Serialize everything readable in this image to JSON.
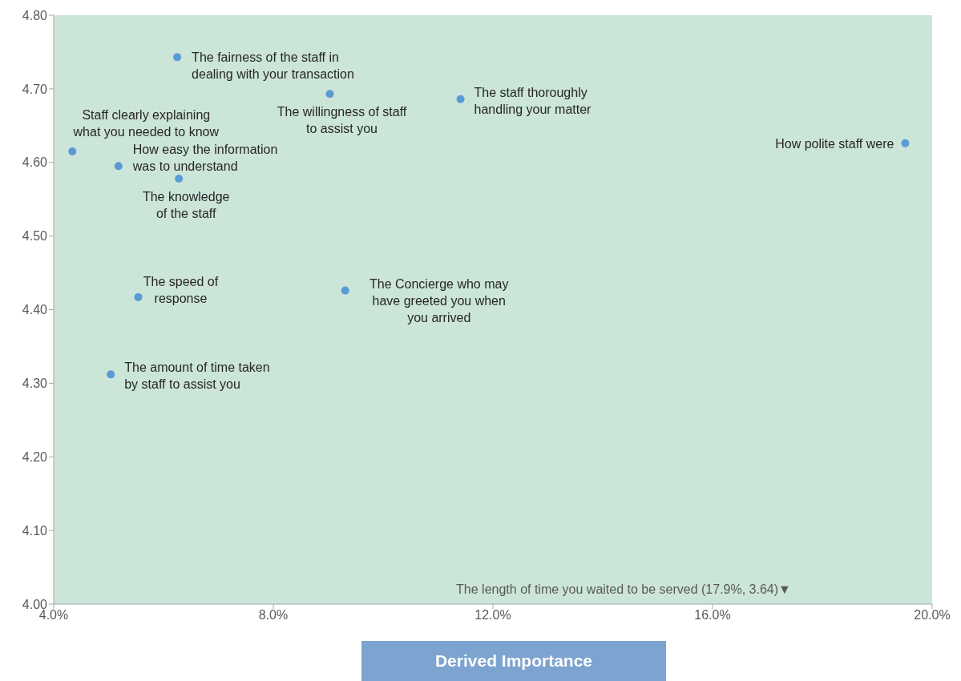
{
  "chart_data": {
    "type": "scatter",
    "xlabel": "Derived Importance",
    "x": [
      6.25,
      9.03,
      11.41,
      19.51,
      4.34,
      5.18,
      6.28,
      5.54,
      9.31,
      5.04
    ],
    "values": [
      4.743,
      4.693,
      4.686,
      4.626,
      4.615,
      4.595,
      4.578,
      4.417,
      4.426,
      4.312
    ],
    "color": "#5b9bd5",
    "marker": "circle",
    "xlim": [
      4,
      20
    ],
    "xticks": [
      {
        "value": 4,
        "label": "4.0%"
      },
      {
        "value": 8,
        "label": "8.0%"
      },
      {
        "value": 12,
        "label": "12.0%"
      },
      {
        "value": 16,
        "label": "16.0%"
      },
      {
        "value": 20,
        "label": "20.0%"
      }
    ],
    "ylim": [
      4,
      4.8
    ],
    "yticks": [
      {
        "value": 4,
        "label": "4.00"
      },
      {
        "value": 4.1,
        "label": "4.10"
      },
      {
        "value": 4.2,
        "label": "4.20"
      },
      {
        "value": 4.3,
        "label": "4.30"
      },
      {
        "value": 4.4,
        "label": "4.40"
      },
      {
        "value": 4.5,
        "label": "4.50"
      },
      {
        "value": 4.6,
        "label": "4.60"
      },
      {
        "value": 4.7,
        "label": "4.70"
      },
      {
        "value": 4.8,
        "label": "4.80"
      }
    ],
    "annotations": [
      {
        "text": "The fairness of the staff in dealing with your transaction",
        "x": 6.25,
        "y": 4.743
      },
      {
        "text": "The willingness of staff to assist you",
        "x": 9.03,
        "y": 4.693
      },
      {
        "text": "The staff thoroughly handling your matter",
        "x": 11.41,
        "y": 4.686
      },
      {
        "text": "How polite staff were",
        "x": 19.51,
        "y": 4.626
      },
      {
        "text": "Staff clearly explaining what you needed to know",
        "x": 4.34,
        "y": 4.615
      },
      {
        "text": "How easy the information was to understand",
        "x": 5.18,
        "y": 4.595
      },
      {
        "text": "The knowledge of the staff",
        "x": 6.28,
        "y": 4.578
      },
      {
        "text": "The speed of response",
        "x": 5.54,
        "y": 4.417
      },
      {
        "text": "The Concierge who may have greeted you when you arrived",
        "x": 9.31,
        "y": 4.426
      },
      {
        "text": "The amount of time taken by staff to assist you",
        "x": 5.04,
        "y": 4.312
      },
      "The length of time you waited to be served (17.9%, 3.64)▼"
    ]
  }
}
